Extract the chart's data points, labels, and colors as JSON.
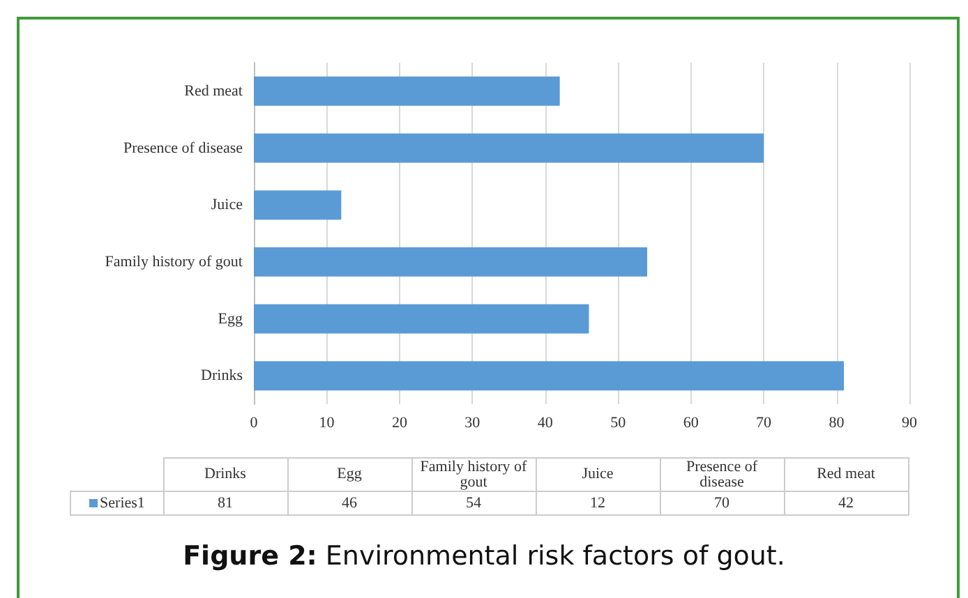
{
  "chart_data": [
    {
      "type": "bar",
      "orientation": "horizontal",
      "title": "Figure 2: Environmental risk factors of gout.",
      "categories": [
        "Red meat",
        "Presence of disease",
        "Juice",
        "Family history of gout",
        "Egg",
        "Drinks"
      ],
      "series": [
        {
          "color": "#5b9bd5",
          "values": [
            42,
            70,
            12,
            54,
            46,
            81
          ]
        }
      ],
      "xlim": [
        0,
        90
      ],
      "xticks": [
        0,
        10,
        20,
        30,
        40,
        50,
        60,
        70,
        80,
        90
      ],
      "grid": "x"
    },
    {
      "type": "other",
      "categories": [
        "Drinks",
        "Egg",
        "Family history of gout",
        "Juice",
        "Presence of disease",
        "Red meat"
      ],
      "series": [
        {
          "name": "Series1",
          "color": "#5b9bd5",
          "values": [
            81,
            46,
            54,
            12,
            70,
            42
          ]
        }
      ],
      "legend": "left",
      "data_labels": true
    }
  ]
}
